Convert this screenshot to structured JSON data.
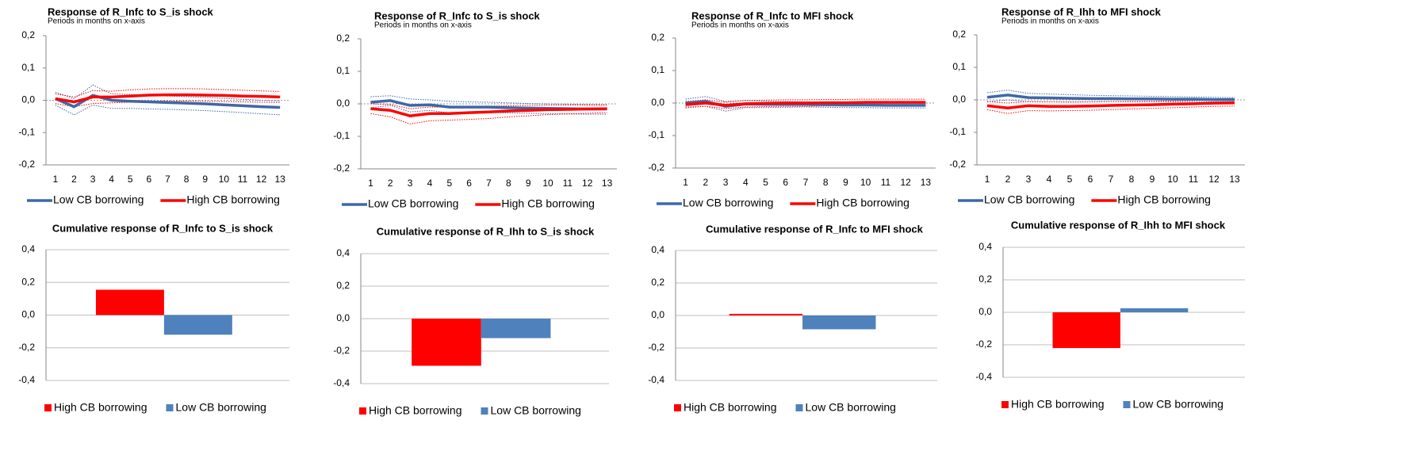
{
  "chart_data": [
    {
      "type": "line",
      "title": "Response of R_Infc to S_is shock",
      "subtitle": "Periods in months on x-axis",
      "categories": [
        "1",
        "2",
        "3",
        "4",
        "5",
        "6",
        "7",
        "8",
        "9",
        "10",
        "11",
        "12",
        "13"
      ],
      "ylim": [
        -0.2,
        0.2
      ],
      "yticks": [
        {
          "value": -0.2,
          "label": "-0,2"
        },
        {
          "value": -0.1,
          "label": "-0,1"
        },
        {
          "value": 0,
          "label": "0,0"
        },
        {
          "value": 0.1,
          "label": "0,1"
        },
        {
          "value": 0.2,
          "label": "0,2"
        }
      ],
      "grid": false,
      "legend": "bottom",
      "series": [
        {
          "name": "Low CB borrowing",
          "color": "#3d68a8",
          "values": [
            0.005,
            -0.02,
            0.015,
            0,
            -0.003,
            -0.005,
            -0.007,
            -0.009,
            -0.011,
            -0.014,
            -0.017,
            -0.02,
            -0.022
          ],
          "upper": [
            0.025,
            0.005,
            0.047,
            0.02,
            0.018,
            0.016,
            0.013,
            0.011,
            0.009,
            0.006,
            0.003,
            0,
            -0.002
          ],
          "lower": [
            -0.015,
            -0.045,
            -0.015,
            -0.025,
            -0.025,
            -0.027,
            -0.028,
            -0.03,
            -0.032,
            -0.035,
            -0.038,
            -0.042,
            -0.045
          ]
        },
        {
          "name": "High CB borrowing",
          "color": "#ff0000",
          "values": [
            0.005,
            -0.005,
            0.01,
            0.01,
            0.013,
            0.016,
            0.017,
            0.017,
            0.016,
            0.015,
            0.013,
            0.012,
            0.01
          ],
          "upper": [
            0.02,
            0.01,
            0.03,
            0.028,
            0.032,
            0.035,
            0.036,
            0.036,
            0.035,
            0.033,
            0.031,
            0.029,
            0.027
          ],
          "lower": [
            -0.01,
            -0.02,
            -0.01,
            -0.008,
            -0.006,
            -0.003,
            -0.002,
            -0.002,
            -0.003,
            -0.004,
            -0.005,
            -0.006,
            -0.007
          ]
        }
      ]
    },
    {
      "type": "line",
      "title": "Response of R_Infc to S_is shock",
      "subtitle": "Periods in months on x-axis",
      "categories": [
        "1",
        "2",
        "3",
        "4",
        "5",
        "6",
        "7",
        "8",
        "9",
        "10",
        "11",
        "12",
        "13"
      ],
      "ylim": [
        -0.2,
        0.2
      ],
      "yticks": [
        {
          "value": -0.2,
          "label": "-0,2"
        },
        {
          "value": -0.1,
          "label": "-0,1"
        },
        {
          "value": 0,
          "label": "0,0"
        },
        {
          "value": 0.1,
          "label": "0,1"
        },
        {
          "value": 0.2,
          "label": "0,2"
        }
      ],
      "grid": false,
      "legend": "bottom",
      "series": [
        {
          "name": "Low CB borrowing",
          "color": "#3d68a8",
          "values": [
            0.005,
            0.01,
            -0.005,
            -0.003,
            -0.01,
            -0.01,
            -0.01,
            -0.012,
            -0.013,
            -0.014,
            -0.015,
            -0.016,
            -0.016
          ],
          "upper": [
            0.022,
            0.025,
            0.015,
            0.012,
            0.008,
            0.006,
            0.005,
            0.003,
            0.001,
            0,
            -0.001,
            -0.002,
            -0.003
          ],
          "lower": [
            -0.012,
            -0.005,
            -0.025,
            -0.02,
            -0.028,
            -0.028,
            -0.027,
            -0.028,
            -0.029,
            -0.03,
            -0.031,
            -0.032,
            -0.032
          ]
        },
        {
          "name": "High CB borrowing",
          "color": "#ff0000",
          "values": [
            -0.015,
            -0.02,
            -0.037,
            -0.03,
            -0.03,
            -0.027,
            -0.025,
            -0.022,
            -0.02,
            -0.018,
            -0.017,
            -0.016,
            -0.015
          ],
          "upper": [
            0,
            -0.002,
            -0.015,
            -0.01,
            -0.01,
            -0.008,
            -0.007,
            -0.006,
            -0.005,
            -0.004,
            -0.004,
            -0.004,
            -0.004
          ],
          "lower": [
            -0.03,
            -0.04,
            -0.062,
            -0.052,
            -0.05,
            -0.048,
            -0.045,
            -0.04,
            -0.037,
            -0.033,
            -0.031,
            -0.029,
            -0.027
          ]
        }
      ]
    },
    {
      "type": "line",
      "title": "Response of R_Infc to MFI shock",
      "subtitle": "Periods in months on x-axis",
      "categories": [
        "1",
        "2",
        "3",
        "4",
        "5",
        "6",
        "7",
        "8",
        "9",
        "10",
        "11",
        "12",
        "13"
      ],
      "ylim": [
        -0.2,
        0.2
      ],
      "yticks": [
        {
          "value": -0.2,
          "label": "-0,2"
        },
        {
          "value": -0.1,
          "label": "-0,1"
        },
        {
          "value": 0,
          "label": "0,0"
        },
        {
          "value": 0.1,
          "label": "0,1"
        },
        {
          "value": 0.2,
          "label": "0,2"
        }
      ],
      "grid": false,
      "legend": "bottom",
      "series": [
        {
          "name": "Low CB borrowing",
          "color": "#3d68a8",
          "values": [
            0,
            0.005,
            -0.01,
            -0.003,
            -0.004,
            -0.004,
            -0.004,
            -0.005,
            -0.006,
            -0.006,
            -0.007,
            -0.007,
            -0.007
          ],
          "upper": [
            0.012,
            0.02,
            0.005,
            0.008,
            0.006,
            0.005,
            0.004,
            0.003,
            0.002,
            0.002,
            0.001,
            0.001,
            0.001
          ],
          "lower": [
            -0.012,
            -0.01,
            -0.025,
            -0.014,
            -0.014,
            -0.013,
            -0.012,
            -0.013,
            -0.014,
            -0.014,
            -0.015,
            -0.015,
            -0.015
          ]
        },
        {
          "name": "High CB borrowing",
          "color": "#ff0000",
          "values": [
            -0.005,
            0,
            -0.007,
            -0.002,
            -0.001,
            0,
            0,
            0.001,
            0.001,
            0.002,
            0.002,
            0.002,
            0.002
          ],
          "upper": [
            0.005,
            0.01,
            0.003,
            0.008,
            0.009,
            0.01,
            0.01,
            0.011,
            0.011,
            0.012,
            0.012,
            0.012,
            0.012
          ],
          "lower": [
            -0.015,
            -0.01,
            -0.017,
            -0.012,
            -0.011,
            -0.01,
            -0.01,
            -0.009,
            -0.009,
            -0.008,
            -0.008,
            -0.008,
            -0.008
          ]
        }
      ]
    },
    {
      "type": "line",
      "title": "Response of R_Ihh to MFI shock",
      "subtitle": "Periods in months on x-axis",
      "categories": [
        "1",
        "2",
        "3",
        "4",
        "5",
        "6",
        "7",
        "8",
        "9",
        "10",
        "11",
        "12",
        "13"
      ],
      "ylim": [
        -0.2,
        0.2
      ],
      "yticks": [
        {
          "value": -0.2,
          "label": "-0,2"
        },
        {
          "value": -0.1,
          "label": "-0,1"
        },
        {
          "value": 0,
          "label": "0,0"
        },
        {
          "value": 0.1,
          "label": "0,1"
        },
        {
          "value": 0.2,
          "label": "0,2"
        }
      ],
      "grid": false,
      "legend": "bottom",
      "series": [
        {
          "name": "Low CB borrowing",
          "color": "#3d68a8",
          "values": [
            0.008,
            0.015,
            0.007,
            0.006,
            0.005,
            0.004,
            0.004,
            0.003,
            0.003,
            0.002,
            0.002,
            0.001,
            0.001
          ],
          "upper": [
            0.022,
            0.03,
            0.02,
            0.018,
            0.016,
            0.014,
            0.013,
            0.012,
            0.011,
            0.01,
            0.009,
            0.008,
            0.007
          ],
          "lower": [
            -0.006,
            0,
            -0.006,
            -0.006,
            -0.006,
            -0.006,
            -0.005,
            -0.006,
            -0.005,
            -0.006,
            -0.005,
            -0.006,
            -0.005
          ]
        },
        {
          "name": "High CB borrowing",
          "color": "#ff0000",
          "values": [
            -0.018,
            -0.025,
            -0.018,
            -0.02,
            -0.02,
            -0.019,
            -0.017,
            -0.016,
            -0.015,
            -0.013,
            -0.012,
            -0.01,
            -0.009
          ],
          "upper": [
            -0.005,
            -0.01,
            -0.005,
            -0.006,
            -0.007,
            -0.006,
            -0.005,
            -0.005,
            -0.004,
            -0.003,
            -0.002,
            0,
            0.001
          ],
          "lower": [
            -0.03,
            -0.042,
            -0.033,
            -0.034,
            -0.033,
            -0.032,
            -0.03,
            -0.028,
            -0.026,
            -0.024,
            -0.022,
            -0.02,
            -0.019
          ]
        }
      ]
    },
    {
      "type": "bar",
      "title": "Cumulative response of R_Infc to S_is shock",
      "ylim": [
        -0.4,
        0.4
      ],
      "yticks": [
        {
          "value": -0.4,
          "label": "-0,4"
        },
        {
          "value": -0.2,
          "label": "-0,2"
        },
        {
          "value": 0,
          "label": "0,0"
        },
        {
          "value": 0.2,
          "label": "0,2"
        },
        {
          "value": 0.4,
          "label": "0,4"
        }
      ],
      "grid": true,
      "legend": "bottom",
      "series": [
        {
          "name": "High CB borrowing",
          "color": "#ff0000",
          "values": [
            0.155
          ]
        },
        {
          "name": "Low CB borrowing",
          "color": "#4f81bd",
          "values": [
            -0.12
          ]
        }
      ]
    },
    {
      "type": "bar",
      "title": "Cumulative response of R_Ihh to S_is shock",
      "ylim": [
        -0.4,
        0.4
      ],
      "yticks": [
        {
          "value": -0.4,
          "label": "-0,4"
        },
        {
          "value": -0.2,
          "label": "-0,2"
        },
        {
          "value": 0,
          "label": "0,0"
        },
        {
          "value": 0.2,
          "label": "0,2"
        },
        {
          "value": 0.4,
          "label": "0,4"
        }
      ],
      "grid": true,
      "legend": "bottom",
      "series": [
        {
          "name": "High CB borrowing",
          "color": "#ff0000",
          "values": [
            -0.29
          ]
        },
        {
          "name": "Low CB borrowing",
          "color": "#4f81bd",
          "values": [
            -0.12
          ]
        }
      ]
    },
    {
      "type": "bar",
      "title": "Cumulative response of R_Infc to MFI shock",
      "ylim": [
        -0.4,
        0.4
      ],
      "yticks": [
        {
          "value": -0.4,
          "label": "-0,4"
        },
        {
          "value": -0.2,
          "label": "-0,2"
        },
        {
          "value": 0,
          "label": "0,0"
        },
        {
          "value": 0.2,
          "label": "0,2"
        },
        {
          "value": 0.4,
          "label": "0,4"
        }
      ],
      "grid": true,
      "legend": "bottom",
      "series": [
        {
          "name": "High CB borrowing",
          "color": "#ff0000",
          "values": [
            0.01
          ]
        },
        {
          "name": "Low CB borrowing",
          "color": "#4f81bd",
          "values": [
            -0.085
          ]
        }
      ]
    },
    {
      "type": "bar",
      "title": "Cumulative response of R_Ihh to MFI shock",
      "ylim": [
        -0.4,
        0.4
      ],
      "yticks": [
        {
          "value": -0.4,
          "label": "-0,4"
        },
        {
          "value": -0.2,
          "label": "-0,2"
        },
        {
          "value": 0,
          "label": "0,0"
        },
        {
          "value": 0.2,
          "label": "0,2"
        },
        {
          "value": 0.4,
          "label": "0,4"
        }
      ],
      "grid": true,
      "legend": "bottom",
      "series": [
        {
          "name": "High CB borrowing",
          "color": "#ff0000",
          "values": [
            -0.22
          ]
        },
        {
          "name": "Low CB borrowing",
          "color": "#4f81bd",
          "values": [
            0.025
          ]
        }
      ]
    }
  ]
}
